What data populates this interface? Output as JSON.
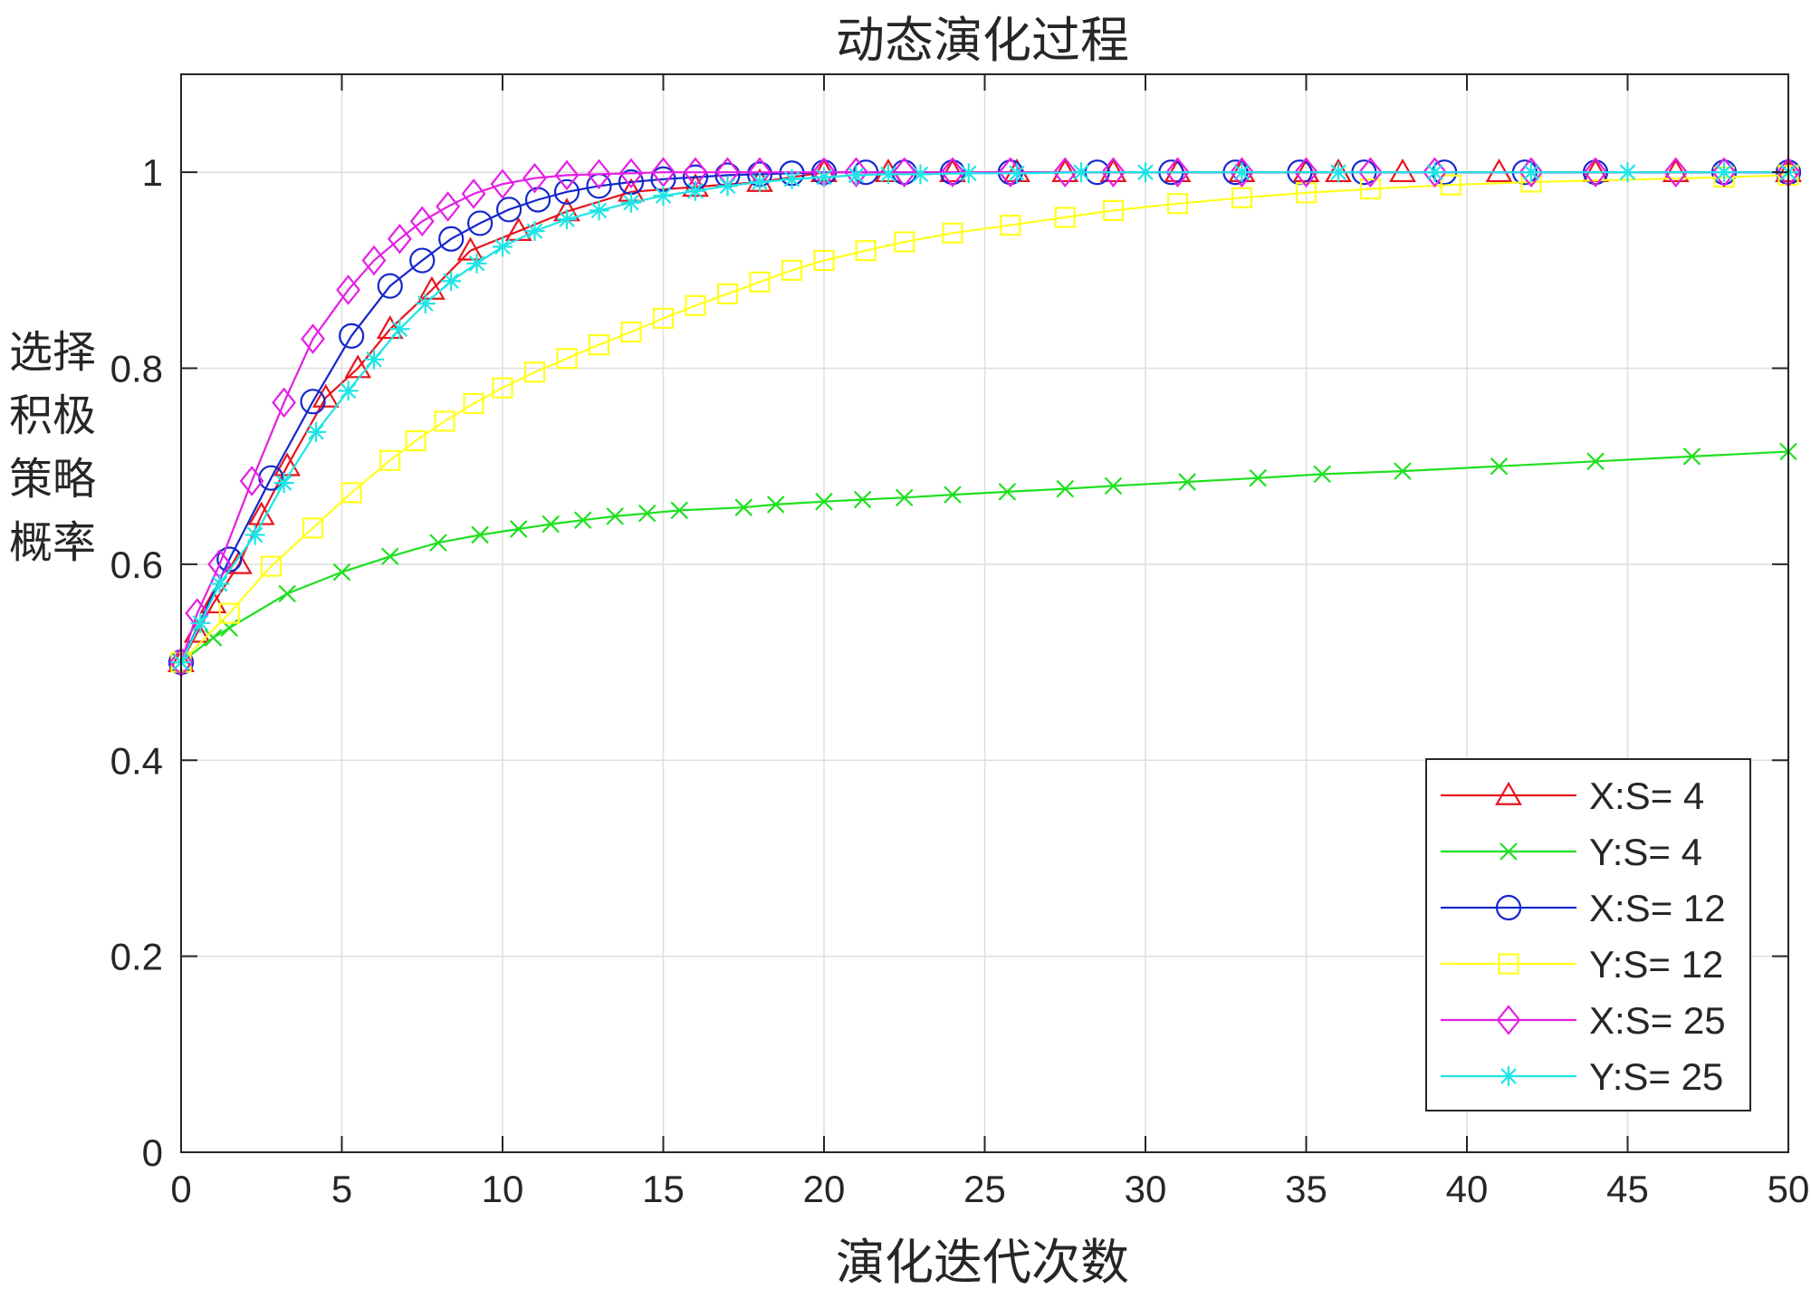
{
  "chart_data": {
    "type": "line",
    "title": "动态演化过程",
    "xlabel": "演化迭代次数",
    "ylabel": "选择积极策略概率",
    "xlim": [
      0,
      50
    ],
    "ylim": [
      0,
      1.1
    ],
    "xticks": [
      0,
      5,
      10,
      15,
      20,
      25,
      30,
      35,
      40,
      45,
      50
    ],
    "yticks": [
      0,
      0.2,
      0.4,
      0.6,
      0.8,
      1
    ],
    "xtick_labels": [
      "0",
      "5",
      "10",
      "15",
      "20",
      "25",
      "30",
      "35",
      "40",
      "45",
      "50"
    ],
    "ytick_labels": [
      "0",
      "0.2",
      "0.4",
      "0.6",
      "0.8",
      "1"
    ],
    "grid": true,
    "legend_position": "bottom-right",
    "series": [
      {
        "name": "X:S= 4",
        "color": "#e8141c",
        "marker": "triangle",
        "x": [
          0,
          0.5,
          1,
          1.8,
          2.5,
          3.3,
          4.5,
          5.5,
          6.5,
          7.8,
          9,
          10.5,
          12,
          14,
          16,
          18,
          20,
          22,
          24,
          26,
          27.5,
          29,
          31,
          33,
          35,
          36,
          38,
          41,
          44,
          46.5,
          50
        ],
        "y": [
          0.5,
          0.53,
          0.56,
          0.6,
          0.65,
          0.7,
          0.77,
          0.8,
          0.84,
          0.88,
          0.92,
          0.94,
          0.96,
          0.98,
          0.985,
          0.99,
          1.0,
          1.0,
          1.0,
          1.0,
          1.0,
          1.0,
          1.0,
          1.0,
          1.0,
          1.0,
          1.0,
          1.0,
          1.0,
          1.0,
          1.0
        ]
      },
      {
        "name": "Y:S= 4",
        "color": "#1fe01f",
        "marker": "x",
        "x": [
          0,
          1,
          1.5,
          3.3,
          5,
          6.5,
          8,
          9.3,
          10.5,
          11.5,
          12.5,
          13.5,
          14.5,
          15.5,
          17.5,
          18.5,
          20,
          21.2,
          22.5,
          24,
          25.7,
          27.5,
          29,
          31.3,
          33.5,
          35.5,
          38,
          41,
          44,
          47,
          50
        ],
        "y": [
          0.5,
          0.525,
          0.535,
          0.57,
          0.592,
          0.608,
          0.622,
          0.63,
          0.636,
          0.641,
          0.645,
          0.649,
          0.652,
          0.655,
          0.658,
          0.661,
          0.664,
          0.666,
          0.668,
          0.671,
          0.674,
          0.677,
          0.68,
          0.684,
          0.688,
          0.692,
          0.695,
          0.7,
          0.705,
          0.71,
          0.715
        ]
      },
      {
        "name": "X:S= 12",
        "color": "#1428cc",
        "marker": "circle",
        "x": [
          0,
          1.5,
          2.8,
          4.1,
          5.3,
          6.5,
          7.5,
          8.4,
          9.3,
          10.2,
          11.1,
          12,
          13,
          14,
          15,
          16,
          17,
          18,
          19,
          20,
          21.3,
          22.5,
          24,
          25.8,
          28.5,
          30.8,
          32.8,
          34.8,
          36.8,
          39.3,
          41.8,
          44,
          48,
          50
        ],
        "y": [
          0.5,
          0.605,
          0.688,
          0.766,
          0.833,
          0.884,
          0.91,
          0.932,
          0.948,
          0.962,
          0.972,
          0.98,
          0.986,
          0.99,
          0.993,
          0.995,
          0.997,
          0.998,
          0.999,
          1.0,
          1.0,
          1.0,
          1.0,
          1.0,
          1.0,
          1.0,
          1.0,
          1.0,
          1.0,
          1.0,
          1.0,
          1.0,
          1.0,
          1.0
        ]
      },
      {
        "name": "Y:S= 12",
        "color": "#ffff1e",
        "marker": "square",
        "x": [
          0,
          1.5,
          2.8,
          4.1,
          5.3,
          6.5,
          7.3,
          8.2,
          9.1,
          10,
          11,
          12,
          13,
          14,
          15,
          16,
          17,
          18,
          19,
          20,
          21.3,
          22.5,
          24,
          25.8,
          27.5,
          29,
          31,
          33,
          35,
          37,
          39.5,
          42,
          48,
          50
        ],
        "y": [
          0.5,
          0.55,
          0.598,
          0.637,
          0.673,
          0.706,
          0.726,
          0.746,
          0.764,
          0.78,
          0.796,
          0.81,
          0.824,
          0.837,
          0.851,
          0.864,
          0.876,
          0.888,
          0.9,
          0.91,
          0.92,
          0.929,
          0.938,
          0.946,
          0.954,
          0.961,
          0.968,
          0.974,
          0.979,
          0.983,
          0.987,
          0.99,
          0.995,
          0.997
        ]
      },
      {
        "name": "X:S= 25",
        "color": "#e51ee5",
        "marker": "diamond",
        "x": [
          0,
          0.5,
          1.2,
          2.2,
          3.2,
          4.1,
          5.2,
          6,
          6.8,
          7.5,
          8.3,
          9.1,
          10,
          11,
          12,
          13,
          14,
          15,
          16,
          17,
          18,
          20,
          21,
          22.5,
          24,
          25.8,
          27.5,
          29,
          31,
          33,
          35,
          37,
          39,
          42,
          44,
          46.5,
          48,
          50
        ],
        "y": [
          0.5,
          0.55,
          0.6,
          0.685,
          0.765,
          0.83,
          0.88,
          0.91,
          0.932,
          0.95,
          0.965,
          0.978,
          0.988,
          0.994,
          0.997,
          0.998,
          0.999,
          1.0,
          1.0,
          1.0,
          1.0,
          1.0,
          1.0,
          1.0,
          1.0,
          1.0,
          1.0,
          1.0,
          1.0,
          1.0,
          1.0,
          1.0,
          1.0,
          1.0,
          1.0,
          1.0,
          1.0,
          1.0
        ]
      },
      {
        "name": "Y:S= 25",
        "color": "#1ee5e5",
        "marker": "asterisk",
        "x": [
          0,
          0.6,
          1.2,
          2.3,
          3.2,
          4.2,
          5.2,
          6,
          6.8,
          7.6,
          8.4,
          9.2,
          10,
          11,
          12,
          13,
          14,
          15,
          16,
          17,
          18,
          19,
          20,
          21,
          22,
          23,
          24.5,
          26,
          28,
          30,
          33,
          36,
          39,
          42,
          45,
          48,
          50
        ],
        "y": [
          0.5,
          0.54,
          0.58,
          0.63,
          0.683,
          0.735,
          0.777,
          0.809,
          0.84,
          0.866,
          0.889,
          0.907,
          0.924,
          0.94,
          0.952,
          0.961,
          0.969,
          0.976,
          0.981,
          0.986,
          0.99,
          0.993,
          0.995,
          0.997,
          0.998,
          0.998,
          0.999,
          0.999,
          1.0,
          1.0,
          1.0,
          1.0,
          1.0,
          1.0,
          1.0,
          1.0,
          1.0
        ]
      }
    ]
  }
}
